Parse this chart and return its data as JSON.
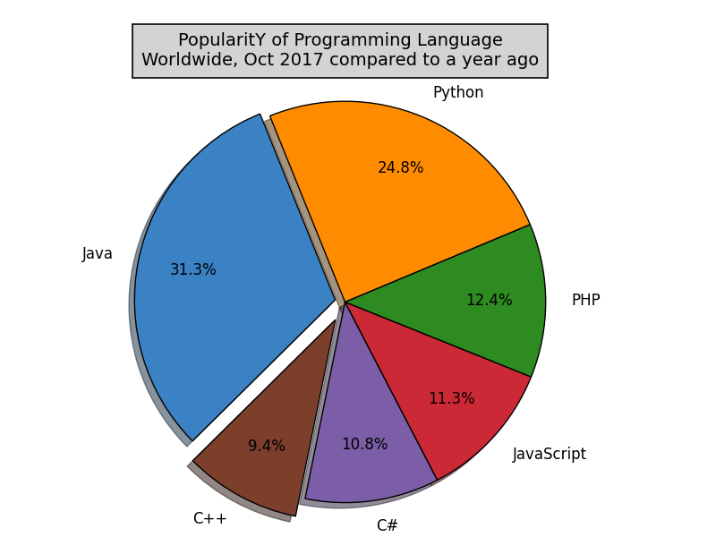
{
  "title": "PopularitY of Programming Language\nWorldwide, Oct 2017 compared to a year ago",
  "labels": [
    "Java",
    "C++",
    "C#",
    "JavaScript",
    "PHP",
    "Python"
  ],
  "sizes": [
    31.3,
    9.4,
    10.8,
    11.3,
    12.4,
    24.8
  ],
  "colors": [
    "#3A82C4",
    "#7B3F2B",
    "#7B5EA7",
    "#CC2936",
    "#2E8B22",
    "#FF8C00"
  ],
  "explode": [
    0.05,
    0.1,
    0,
    0,
    0,
    0
  ],
  "shadow": true,
  "startangle": 112,
  "title_fontsize": 14,
  "autopct_fontsize": 12,
  "label_fontsize": 12
}
